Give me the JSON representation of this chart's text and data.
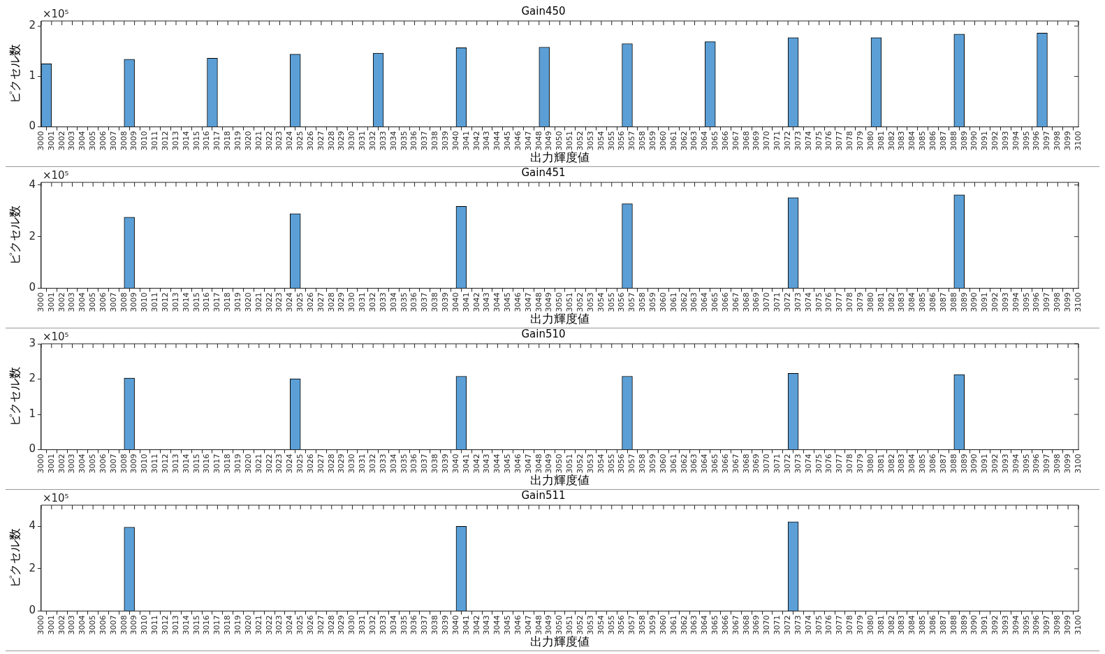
{
  "chart_data": [
    {
      "type": "histogram",
      "title": "Gain450",
      "xlabel": "出力輝度値",
      "ylabel": "ピクセル数",
      "annotations": [
        "×10⁵"
      ],
      "color": "#5b9fd6",
      "grid": false,
      "xlim": [
        3000,
        3100
      ],
      "ylim": [
        0,
        2.1
      ],
      "yticks": [
        0,
        1,
        2
      ],
      "bins": [
        3000,
        3001,
        3002,
        3003,
        3004,
        3005,
        3006,
        3007,
        3008,
        3009,
        3010,
        3011,
        3012,
        3013,
        3014,
        3015,
        3016,
        3017,
        3018,
        3019,
        3020,
        3021,
        3022,
        3023,
        3024,
        3025,
        3026,
        3027,
        3028,
        3029,
        3030,
        3031,
        3032,
        3033,
        3034,
        3035,
        3036,
        3037,
        3038,
        3039,
        3040,
        3041,
        3042,
        3043,
        3044,
        3045,
        3046,
        3047,
        3048,
        3049,
        3050,
        3051,
        3052,
        3053,
        3054,
        3055,
        3056,
        3057,
        3058,
        3059,
        3060,
        3061,
        3062,
        3063,
        3064,
        3065,
        3066,
        3067,
        3068,
        3069,
        3070,
        3071,
        3072,
        3073,
        3074,
        3075,
        3076,
        3077,
        3078,
        3079,
        3080,
        3081,
        3082,
        3083,
        3084,
        3085,
        3086,
        3087,
        3088,
        3089,
        3090,
        3091,
        3092,
        3093,
        3094,
        3095,
        3096,
        3097,
        3098,
        3099,
        3100
      ],
      "xticks": [
        3000,
        3001,
        3002,
        3003,
        3004,
        3005,
        3006,
        3007,
        3008,
        3009,
        3010,
        3011,
        3012,
        3013,
        3014,
        3015,
        3016,
        3017,
        3018,
        3019,
        3020,
        3021,
        3022,
        3023,
        3024,
        3025,
        3026,
        3027,
        3028,
        3029,
        3030,
        3031,
        3032,
        3033,
        3034,
        3035,
        3036,
        3037,
        3038,
        3039,
        3040,
        3041,
        3042,
        3043,
        3044,
        3045,
        3046,
        3047,
        3048,
        3049,
        3050,
        3051,
        3052,
        3053,
        3054,
        3055,
        3056,
        3057,
        3058,
        3059,
        3060,
        3061,
        3062,
        3063,
        3064,
        3065,
        3066,
        3067,
        3068,
        3069,
        3070,
        3071,
        3072,
        3073,
        3074,
        3075,
        3076,
        3077,
        3078,
        3079,
        3080,
        3081,
        3082,
        3083,
        3084,
        3085,
        3086,
        3087,
        3088,
        3089,
        3090,
        3091,
        3092,
        3093,
        3094,
        3095,
        3096,
        3097,
        3098,
        3099,
        3100
      ],
      "values": [
        1.25,
        0,
        0,
        0,
        0,
        0,
        0,
        0,
        1.34,
        0,
        0,
        0,
        0,
        0,
        0,
        0,
        1.36,
        0,
        0,
        0,
        0,
        0,
        0,
        0,
        1.44,
        0,
        0,
        0,
        0,
        0,
        0,
        0,
        1.46,
        0,
        0,
        0,
        0,
        0,
        0,
        0,
        1.57,
        0,
        0,
        0,
        0,
        0,
        0,
        0,
        1.58,
        0,
        0,
        0,
        0,
        0,
        0,
        0,
        1.65,
        0,
        0,
        0,
        0,
        0,
        0,
        0,
        1.69,
        0,
        0,
        0,
        0,
        0,
        0,
        0,
        1.77,
        0,
        0,
        0,
        0,
        0,
        0,
        0,
        1.77,
        0,
        0,
        0,
        0,
        0,
        0,
        0,
        1.84,
        0,
        0,
        0,
        0,
        0,
        0,
        0,
        1.86,
        0,
        0,
        0
      ]
    },
    {
      "type": "histogram",
      "title": "Gain451",
      "xlabel": "出力輝度値",
      "ylabel": "ピクセル数",
      "annotations": [
        "×10⁵"
      ],
      "color": "#5b9fd6",
      "grid": false,
      "xlim": [
        3000,
        3100
      ],
      "ylim": [
        0,
        4.1
      ],
      "yticks": [
        0,
        2,
        4
      ],
      "bins": [
        3000,
        3001,
        3002,
        3003,
        3004,
        3005,
        3006,
        3007,
        3008,
        3009,
        3010,
        3011,
        3012,
        3013,
        3014,
        3015,
        3016,
        3017,
        3018,
        3019,
        3020,
        3021,
        3022,
        3023,
        3024,
        3025,
        3026,
        3027,
        3028,
        3029,
        3030,
        3031,
        3032,
        3033,
        3034,
        3035,
        3036,
        3037,
        3038,
        3039,
        3040,
        3041,
        3042,
        3043,
        3044,
        3045,
        3046,
        3047,
        3048,
        3049,
        3050,
        3051,
        3052,
        3053,
        3054,
        3055,
        3056,
        3057,
        3058,
        3059,
        3060,
        3061,
        3062,
        3063,
        3064,
        3065,
        3066,
        3067,
        3068,
        3069,
        3070,
        3071,
        3072,
        3073,
        3074,
        3075,
        3076,
        3077,
        3078,
        3079,
        3080,
        3081,
        3082,
        3083,
        3084,
        3085,
        3086,
        3087,
        3088,
        3089,
        3090,
        3091,
        3092,
        3093,
        3094,
        3095,
        3096,
        3097,
        3098,
        3099,
        3100
      ],
      "xticks": [
        3000,
        3001,
        3002,
        3003,
        3004,
        3005,
        3006,
        3007,
        3008,
        3009,
        3010,
        3011,
        3012,
        3013,
        3014,
        3015,
        3016,
        3017,
        3018,
        3019,
        3020,
        3021,
        3022,
        3023,
        3024,
        3025,
        3026,
        3027,
        3028,
        3029,
        3030,
        3031,
        3032,
        3033,
        3034,
        3035,
        3036,
        3037,
        3038,
        3039,
        3040,
        3041,
        3042,
        3043,
        3044,
        3045,
        3046,
        3047,
        3048,
        3049,
        3050,
        3051,
        3052,
        3053,
        3054,
        3055,
        3056,
        3057,
        3058,
        3059,
        3060,
        3061,
        3062,
        3063,
        3064,
        3065,
        3066,
        3067,
        3068,
        3069,
        3070,
        3071,
        3072,
        3073,
        3074,
        3075,
        3076,
        3077,
        3078,
        3079,
        3080,
        3081,
        3082,
        3083,
        3084,
        3085,
        3086,
        3087,
        3088,
        3089,
        3090,
        3091,
        3092,
        3093,
        3094,
        3095,
        3096,
        3097,
        3098,
        3099,
        3100
      ],
      "values": [
        0,
        0,
        0,
        0,
        0,
        0,
        0,
        0,
        2.75,
        0,
        0,
        0,
        0,
        0,
        0,
        0,
        0,
        0,
        0,
        0,
        0,
        0,
        0,
        0,
        2.89,
        0,
        0,
        0,
        0,
        0,
        0,
        0,
        0,
        0,
        0,
        0,
        0,
        0,
        0,
        0,
        3.17,
        0,
        0,
        0,
        0,
        0,
        0,
        0,
        0,
        0,
        0,
        0,
        0,
        0,
        0,
        0,
        3.27,
        0,
        0,
        0,
        0,
        0,
        0,
        0,
        0,
        0,
        0,
        0,
        0,
        0,
        0,
        0,
        3.51,
        0,
        0,
        0,
        0,
        0,
        0,
        0,
        0,
        0,
        0,
        0,
        0,
        0,
        0,
        0,
        3.62,
        0,
        0,
        0,
        0,
        0,
        0,
        0,
        0,
        0,
        0,
        0
      ]
    },
    {
      "type": "histogram",
      "title": "Gain510",
      "xlabel": "出力輝度値",
      "ylabel": "ピクセル数",
      "annotations": [
        "×10⁵"
      ],
      "color": "#5b9fd6",
      "grid": false,
      "xlim": [
        3000,
        3100
      ],
      "ylim": [
        0,
        3
      ],
      "yticks": [
        0,
        1,
        2,
        3
      ],
      "bins": [
        3000,
        3001,
        3002,
        3003,
        3004,
        3005,
        3006,
        3007,
        3008,
        3009,
        3010,
        3011,
        3012,
        3013,
        3014,
        3015,
        3016,
        3017,
        3018,
        3019,
        3020,
        3021,
        3022,
        3023,
        3024,
        3025,
        3026,
        3027,
        3028,
        3029,
        3030,
        3031,
        3032,
        3033,
        3034,
        3035,
        3036,
        3037,
        3038,
        3039,
        3040,
        3041,
        3042,
        3043,
        3044,
        3045,
        3046,
        3047,
        3048,
        3049,
        3050,
        3051,
        3052,
        3053,
        3054,
        3055,
        3056,
        3057,
        3058,
        3059,
        3060,
        3061,
        3062,
        3063,
        3064,
        3065,
        3066,
        3067,
        3068,
        3069,
        3070,
        3071,
        3072,
        3073,
        3074,
        3075,
        3076,
        3077,
        3078,
        3079,
        3080,
        3081,
        3082,
        3083,
        3084,
        3085,
        3086,
        3087,
        3088,
        3089,
        3090,
        3091,
        3092,
        3093,
        3094,
        3095,
        3096,
        3097,
        3098,
        3099,
        3100
      ],
      "xticks": [
        3000,
        3001,
        3002,
        3003,
        3004,
        3005,
        3006,
        3007,
        3008,
        3009,
        3010,
        3011,
        3012,
        3013,
        3014,
        3015,
        3016,
        3017,
        3018,
        3019,
        3020,
        3021,
        3022,
        3023,
        3024,
        3025,
        3026,
        3027,
        3028,
        3029,
        3030,
        3031,
        3032,
        3033,
        3034,
        3035,
        3036,
        3037,
        3038,
        3039,
        3040,
        3041,
        3042,
        3043,
        3044,
        3045,
        3046,
        3047,
        3048,
        3049,
        3050,
        3051,
        3052,
        3053,
        3054,
        3055,
        3056,
        3057,
        3058,
        3059,
        3060,
        3061,
        3062,
        3063,
        3064,
        3065,
        3066,
        3067,
        3068,
        3069,
        3070,
        3071,
        3072,
        3073,
        3074,
        3075,
        3076,
        3077,
        3078,
        3079,
        3080,
        3081,
        3082,
        3083,
        3084,
        3085,
        3086,
        3087,
        3088,
        3089,
        3090,
        3091,
        3092,
        3093,
        3094,
        3095,
        3096,
        3097,
        3098,
        3099,
        3100
      ],
      "values": [
        0,
        0,
        0,
        0,
        0,
        0,
        0,
        0,
        2.03,
        0,
        0,
        0,
        0,
        0,
        0,
        0,
        0,
        0,
        0,
        0,
        0,
        0,
        0,
        0,
        2.01,
        0,
        0,
        0,
        0,
        0,
        0,
        0,
        0,
        0,
        0,
        0,
        0,
        0,
        0,
        0,
        2.08,
        0,
        0,
        0,
        0,
        0,
        0,
        0,
        0,
        0,
        0,
        0,
        0,
        0,
        0,
        0,
        2.08,
        0,
        0,
        0,
        0,
        0,
        0,
        0,
        0,
        0,
        0,
        0,
        0,
        0,
        0,
        0,
        2.16,
        0,
        0,
        0,
        0,
        0,
        0,
        0,
        0,
        0,
        0,
        0,
        0,
        0,
        0,
        0,
        2.13,
        0,
        0,
        0,
        0,
        0,
        0,
        0,
        0,
        0,
        0,
        0
      ]
    },
    {
      "type": "histogram",
      "title": "Gain511",
      "xlabel": "出力輝度値",
      "ylabel": "ピクセル数",
      "annotations": [
        "×10⁵"
      ],
      "color": "#5b9fd6",
      "grid": false,
      "xlim": [
        3000,
        3100
      ],
      "ylim": [
        0,
        5
      ],
      "yticks": [
        0,
        2,
        4
      ],
      "bins": [
        3000,
        3001,
        3002,
        3003,
        3004,
        3005,
        3006,
        3007,
        3008,
        3009,
        3010,
        3011,
        3012,
        3013,
        3014,
        3015,
        3016,
        3017,
        3018,
        3019,
        3020,
        3021,
        3022,
        3023,
        3024,
        3025,
        3026,
        3027,
        3028,
        3029,
        3030,
        3031,
        3032,
        3033,
        3034,
        3035,
        3036,
        3037,
        3038,
        3039,
        3040,
        3041,
        3042,
        3043,
        3044,
        3045,
        3046,
        3047,
        3048,
        3049,
        3050,
        3051,
        3052,
        3053,
        3054,
        3055,
        3056,
        3057,
        3058,
        3059,
        3060,
        3061,
        3062,
        3063,
        3064,
        3065,
        3066,
        3067,
        3068,
        3069,
        3070,
        3071,
        3072,
        3073,
        3074,
        3075,
        3076,
        3077,
        3078,
        3079,
        3080,
        3081,
        3082,
        3083,
        3084,
        3085,
        3086,
        3087,
        3088,
        3089,
        3090,
        3091,
        3092,
        3093,
        3094,
        3095,
        3096,
        3097,
        3098,
        3099,
        3100
      ],
      "xticks": [
        3000,
        3001,
        3002,
        3003,
        3004,
        3005,
        3006,
        3007,
        3008,
        3009,
        3010,
        3011,
        3012,
        3013,
        3014,
        3015,
        3016,
        3017,
        3018,
        3019,
        3020,
        3021,
        3022,
        3023,
        3024,
        3025,
        3026,
        3027,
        3028,
        3029,
        3030,
        3031,
        3032,
        3033,
        3034,
        3035,
        3036,
        3037,
        3038,
        3039,
        3040,
        3041,
        3042,
        3043,
        3044,
        3045,
        3046,
        3047,
        3048,
        3049,
        3050,
        3051,
        3052,
        3053,
        3054,
        3055,
        3056,
        3057,
        3058,
        3059,
        3060,
        3061,
        3062,
        3063,
        3064,
        3065,
        3066,
        3067,
        3068,
        3069,
        3070,
        3071,
        3072,
        3073,
        3074,
        3075,
        3076,
        3077,
        3078,
        3079,
        3080,
        3081,
        3082,
        3083,
        3084,
        3085,
        3086,
        3087,
        3088,
        3089,
        3090,
        3091,
        3092,
        3093,
        3094,
        3095,
        3096,
        3097,
        3098,
        3099,
        3100
      ],
      "values": [
        0,
        0,
        0,
        0,
        0,
        0,
        0,
        0,
        3.96,
        0,
        0,
        0,
        0,
        0,
        0,
        0,
        0,
        0,
        0,
        0,
        0,
        0,
        0,
        0,
        0,
        0,
        0,
        0,
        0,
        0,
        0,
        0,
        0,
        0,
        0,
        0,
        0,
        0,
        0,
        0,
        4.0,
        0,
        0,
        0,
        0,
        0,
        0,
        0,
        0,
        0,
        0,
        0,
        0,
        0,
        0,
        0,
        0,
        0,
        0,
        0,
        0,
        0,
        0,
        0,
        0,
        0,
        0,
        0,
        0,
        0,
        0,
        0,
        4.21,
        0,
        0,
        0,
        0,
        0,
        0,
        0,
        0,
        0,
        0,
        0,
        0,
        0,
        0,
        0,
        0,
        0,
        0,
        0,
        0,
        0,
        0,
        0,
        0,
        0,
        0,
        0
      ]
    }
  ]
}
